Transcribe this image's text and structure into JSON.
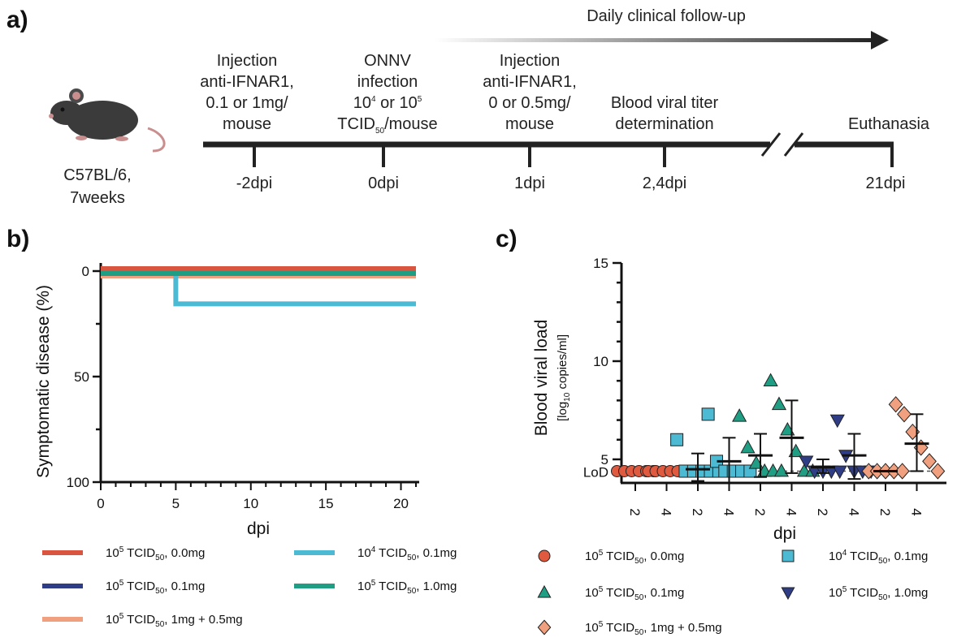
{
  "panels": {
    "a": "a)",
    "b": "b)",
    "c": "c)"
  },
  "timeline": {
    "followup": "Daily clinical follow-up",
    "mouse_label": [
      "C57BL/6,",
      "7weeks"
    ],
    "events": [
      {
        "lines": [
          "Injection",
          "anti-IFNAR1,",
          "0.1 or 1mg/",
          "mouse"
        ],
        "tick": "-2dpi"
      },
      {
        "lines": [
          "ONNV",
          "infection",
          "10^4 or 10^5",
          "TCID_50/mouse"
        ],
        "tick": "0dpi"
      },
      {
        "lines": [
          "Injection",
          "anti-IFNAR1,",
          "0 or 0.5mg/",
          "mouse"
        ],
        "tick": "1dpi"
      },
      {
        "lines": [
          "Blood viral titer",
          "determination"
        ],
        "tick": "2,4dpi"
      },
      {
        "lines": [
          "Euthanasia"
        ],
        "tick": "21dpi"
      }
    ]
  },
  "chart_data": [
    {
      "type": "line",
      "step": true,
      "ylabel": "Symptomatic disease (%)",
      "xlabel": "dpi",
      "xlim": [
        0,
        21
      ],
      "ylim": [
        100,
        0
      ],
      "y_inverted": true,
      "xticks": [
        0,
        5,
        10,
        15,
        20
      ],
      "yticks": [
        0,
        50,
        100
      ],
      "series": [
        {
          "name": "10^5 TCID_50, 0.0mg",
          "color": "#d9553f",
          "x": [
            0,
            21
          ],
          "y": [
            0,
            0
          ]
        },
        {
          "name": "10^4 TCID_50, 0.1mg",
          "color": "#4bbad2",
          "x": [
            0,
            5,
            5,
            21
          ],
          "y": [
            0,
            0,
            16.7,
            16.7
          ]
        },
        {
          "name": "10^5 TCID_50, 0.1mg",
          "color": "#2f3d86",
          "x": [
            0,
            21
          ],
          "y": [
            0,
            0
          ]
        },
        {
          "name": "10^5 TCID_50, 1.0mg",
          "color": "#1f9e84",
          "x": [
            0,
            21
          ],
          "y": [
            0,
            0
          ]
        },
        {
          "name": "10^5 TCID_50, 1mg + 0.5mg",
          "color": "#f0a07f",
          "x": [
            0,
            21
          ],
          "y": [
            0,
            0
          ]
        }
      ],
      "legend": [
        "10^5 TCID_50, 0.0mg",
        "10^4 TCID_50, 0.1mg",
        "10^5 TCID_50, 0.1mg",
        "10^5 TCID_50, 1.0mg",
        "10^5 TCID_50, 1mg + 0.5mg"
      ]
    },
    {
      "type": "scatter",
      "ylabel": "Blood viral load",
      "ylabel_units": "[log_10 copies/ml]",
      "xlabel": "dpi",
      "ylim": [
        3.8,
        15
      ],
      "yticks": [
        5,
        10,
        15
      ],
      "lod_label": "LoD",
      "lod_value": 4.4,
      "categories": [
        "2",
        "4",
        "2",
        "4",
        "2",
        "4",
        "2",
        "4",
        "2",
        "4"
      ],
      "groups": [
        {
          "name": "10^5 TCID_50, 0.0mg",
          "marker": "circle",
          "color": "#e05a3f",
          "days": [
            {
              "dpi": "2",
              "values": [
                4.4,
                4.4,
                4.4,
                4.4,
                4.4,
                4.4
              ]
            },
            {
              "dpi": "4",
              "values": [
                4.4,
                4.4,
                4.4,
                4.4,
                4.4,
                4.4
              ]
            }
          ]
        },
        {
          "name": "10^4 TCID_50, 0.1mg",
          "marker": "square",
          "color": "#4bbad2",
          "days": [
            {
              "dpi": "2",
              "values": [
                6.0,
                4.4,
                4.4,
                4.4,
                4.4,
                4.4
              ],
              "mean": 4.5,
              "sd_low": 3.9,
              "sd_high": 5.3
            },
            {
              "dpi": "4",
              "values": [
                7.3,
                4.9,
                4.4,
                4.4,
                4.4,
                4.4
              ],
              "mean": 4.9,
              "sd_low": 3.8,
              "sd_high": 6.1
            }
          ]
        },
        {
          "name": "10^5 TCID_50, 0.1mg",
          "marker": "triangle-up",
          "color": "#1f9e84",
          "days": [
            {
              "dpi": "2",
              "values": [
                7.2,
                5.6,
                4.8,
                4.4,
                4.4,
                4.4
              ],
              "mean": 5.2,
              "sd_low": 4.1,
              "sd_high": 6.3
            },
            {
              "dpi": "4",
              "values": [
                9.0,
                7.8,
                6.5,
                5.4,
                4.4,
                4.4
              ],
              "mean": 6.1,
              "sd_low": 4.3,
              "sd_high": 8.0
            }
          ]
        },
        {
          "name": "10^5 TCID_50, 1.0mg",
          "marker": "triangle-down",
          "color": "#2f3d86",
          "days": [
            {
              "dpi": "2",
              "values": [
                4.9,
                4.4,
                4.4,
                4.4,
                4.4
              ],
              "mean": 4.6,
              "sd_low": 4.3,
              "sd_high": 5.0
            },
            {
              "dpi": "4",
              "values": [
                7.0,
                5.2,
                4.4,
                4.4,
                4.4
              ],
              "mean": 5.2,
              "sd_low": 4.0,
              "sd_high": 6.3
            }
          ]
        },
        {
          "name": "10^5 TCID_50, 1mg + 0.5mg",
          "marker": "diamond",
          "color": "#f0a07f",
          "days": [
            {
              "dpi": "2",
              "values": [
                4.4,
                4.4,
                4.4,
                4.4,
                4.4
              ],
              "mean": 4.4,
              "sd_low": 4.4,
              "sd_high": 4.4
            },
            {
              "dpi": "4",
              "values": [
                7.8,
                7.3,
                6.4,
                5.6,
                4.9,
                4.4
              ],
              "mean": 5.8,
              "sd_low": 4.4,
              "sd_high": 7.3
            }
          ]
        }
      ],
      "legend": [
        "10^5 TCID_50, 0.0mg",
        "10^4 TCID_50, 0.1mg",
        "10^5 TCID_50, 0.1mg",
        "10^5 TCID_50, 1.0mg",
        "10^5 TCID_50, 1mg + 0.5mg"
      ]
    }
  ]
}
